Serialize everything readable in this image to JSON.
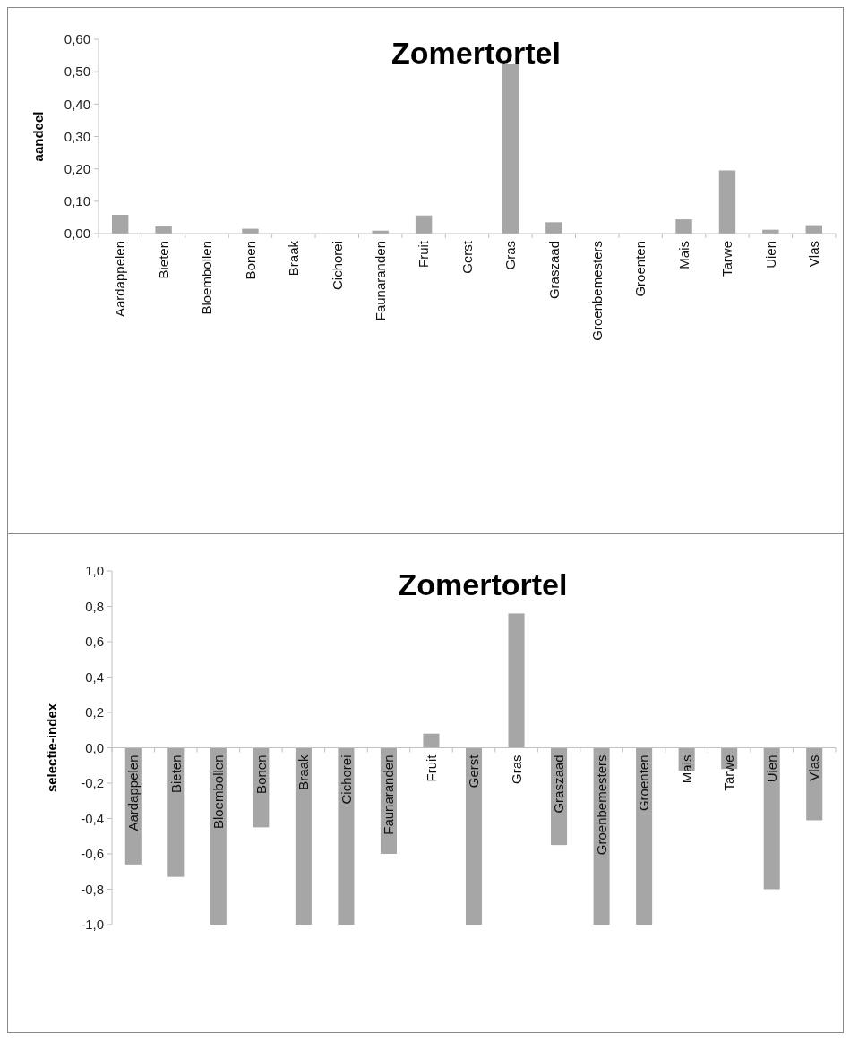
{
  "chart_data": [
    {
      "type": "bar",
      "title": "Zomertortel",
      "ylabel": "aandeel",
      "color": "#a6a6a6",
      "categories": [
        "Aardappelen",
        "Bieten",
        "Bloembollen",
        "Bonen",
        "Braak",
        "Cichorei",
        "Faunaranden",
        "Fruit",
        "Gerst",
        "Gras",
        "Graszaad",
        "Groenbemesters",
        "Groenten",
        "Mais",
        "Tarwe",
        "Uien",
        "Vlas"
      ],
      "values": [
        0.058,
        0.022,
        0,
        0.015,
        0,
        0,
        0.009,
        0.056,
        0,
        0.523,
        0.035,
        0,
        0,
        0.044,
        0.195,
        0.012,
        0.026
      ],
      "ylim": [
        0,
        0.6
      ],
      "yticks": [
        {
          "value": 0,
          "label": "0,00"
        },
        {
          "value": 0.1,
          "label": "0,10"
        },
        {
          "value": 0.2,
          "label": "0,20"
        },
        {
          "value": 0.3,
          "label": "0,30"
        },
        {
          "value": 0.4,
          "label": "0,40"
        },
        {
          "value": 0.5,
          "label": "0,50"
        },
        {
          "value": 0.6,
          "label": "0,60"
        }
      ],
      "grid": false
    },
    {
      "type": "bar",
      "title": "Zomertortel",
      "ylabel": "selectie-index",
      "color": "#a6a6a6",
      "categories": [
        "Aardappelen",
        "Bieten",
        "Bloembollen",
        "Bonen",
        "Braak",
        "Cichorei",
        "Faunaranden",
        "Fruit",
        "Gerst",
        "Gras",
        "Graszaad",
        "Groenbemesters",
        "Groenten",
        "Mais",
        "Tarwe",
        "Uien",
        "Vlas"
      ],
      "values": [
        -0.66,
        -0.73,
        -1,
        -0.45,
        -1,
        -1,
        -0.6,
        0.08,
        -1,
        0.76,
        -0.55,
        -1,
        -1,
        -0.13,
        -0.12,
        -0.8,
        -0.41
      ],
      "ylim": [
        -1,
        1
      ],
      "yticks": [
        {
          "value": -1,
          "label": "-1,0"
        },
        {
          "value": -0.8,
          "label": "-0,8"
        },
        {
          "value": -0.6,
          "label": "-0,6"
        },
        {
          "value": -0.4,
          "label": "-0,4"
        },
        {
          "value": -0.2,
          "label": "-0,2"
        },
        {
          "value": 0,
          "label": "0,0"
        },
        {
          "value": 0.2,
          "label": "0,2"
        },
        {
          "value": 0.4,
          "label": "0,4"
        },
        {
          "value": 0.6,
          "label": "0,6"
        },
        {
          "value": 0.8,
          "label": "0,8"
        },
        {
          "value": 1,
          "label": "1,0"
        }
      ],
      "grid": false
    }
  ]
}
